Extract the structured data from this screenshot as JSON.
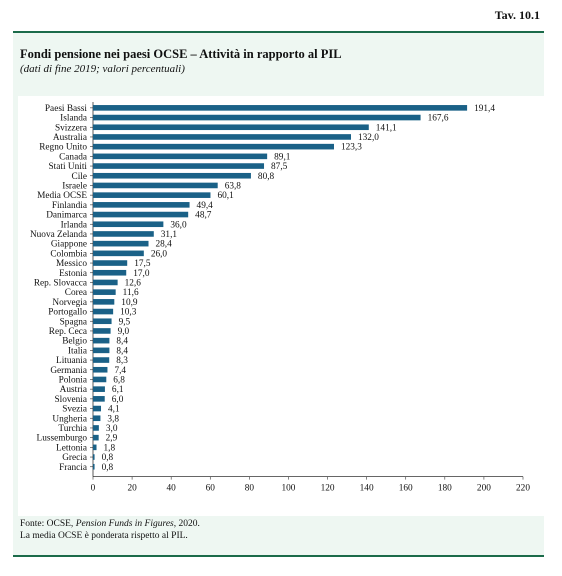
{
  "header": {
    "tav": "Tav. 10.1"
  },
  "title": "Fondi pensione nei paesi OCSE – Attività in rapporto al PIL",
  "subtitle": "(dati di fine 2019; valori percentuali)",
  "footnote": {
    "source_prefix": "Fonte: OCSE, ",
    "source_title": "Pension Funds in Figures",
    "source_suffix": ", 2020.",
    "note": "La media OCSE è ponderata rispetto al PIL."
  },
  "colors": {
    "bar": "#1a6187",
    "frame": "#1b6b4a",
    "panel": "#eef7f2"
  },
  "chart_data": {
    "type": "bar",
    "orientation": "horizontal",
    "categories": [
      "Paesi Bassi",
      "Islanda",
      "Svizzera",
      "Australia",
      "Regno Unito",
      "Canada",
      "Stati Uniti",
      "Cile",
      "Israele",
      "Media OCSE",
      "Finlandia",
      "Danimarca",
      "Irlanda",
      "Nuova Zelanda",
      "Giappone",
      "Colombia",
      "Messico",
      "Estonia",
      "Rep. Slovacca",
      "Corea",
      "Norvegia",
      "Portogallo",
      "Spagna",
      "Rep. Ceca",
      "Belgio",
      "Italia",
      "Lituania",
      "Germania",
      "Polonia",
      "Austria",
      "Slovenia",
      "Svezia",
      "Ungheria",
      "Turchia",
      "Lussemburgo",
      "Lettonia",
      "Grecia",
      "Francia"
    ],
    "values": [
      191.4,
      167.6,
      141.1,
      132.0,
      123.3,
      89.1,
      87.5,
      80.8,
      63.8,
      60.1,
      49.4,
      48.7,
      36.0,
      31.1,
      28.4,
      26.0,
      17.5,
      17.0,
      12.6,
      11.6,
      10.9,
      10.3,
      9.5,
      9.0,
      8.4,
      8.4,
      8.3,
      7.4,
      6.8,
      6.1,
      6.0,
      4.1,
      3.8,
      3.0,
      2.9,
      1.8,
      0.8,
      0.8
    ],
    "value_labels": [
      "191,4",
      "167,6",
      "141,1",
      "132,0",
      "123,3",
      "89,1",
      "87,5",
      "80,8",
      "63,8",
      "60,1",
      "49,4",
      "48,7",
      "36,0",
      "31,1",
      "28,4",
      "26,0",
      "17,5",
      "17,0",
      "12,6",
      "11,6",
      "10,9",
      "10,3",
      "9,5",
      "9,0",
      "8,4",
      "8,4",
      "8,3",
      "7,4",
      "6,8",
      "6,1",
      "6,0",
      "4,1",
      "3,8",
      "3,0",
      "2,9",
      "1,8",
      "0,8",
      "0,8"
    ],
    "xlim": [
      0,
      220
    ],
    "xticks": [
      0,
      20,
      40,
      60,
      80,
      100,
      120,
      140,
      160,
      180,
      200,
      220
    ],
    "grid": false
  }
}
